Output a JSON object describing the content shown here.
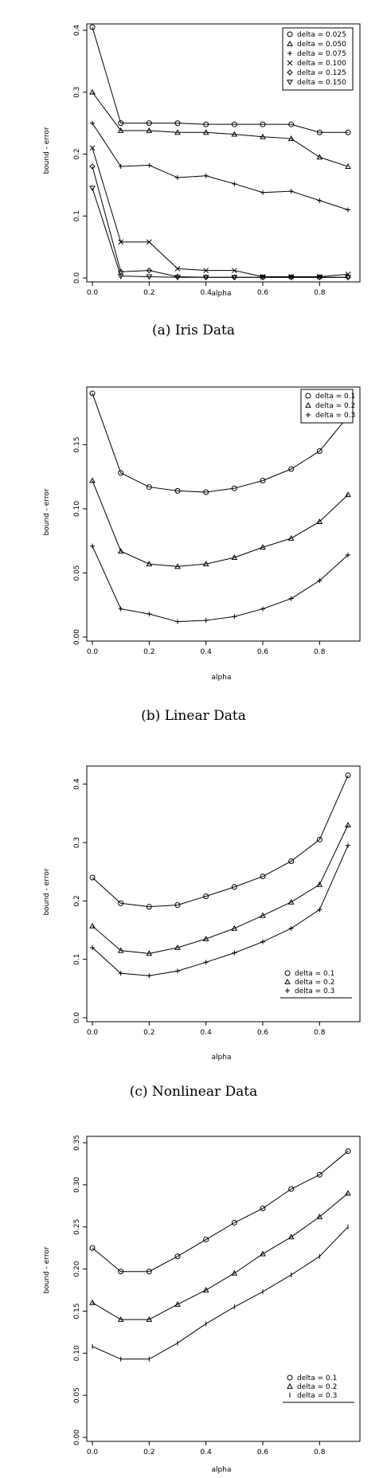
{
  "chart_data": [
    {
      "type": "line",
      "caption": "(a) Iris Data",
      "xlabel": "alpha",
      "ylabel": "bound - error",
      "xlim": [
        0,
        0.9
      ],
      "ylim": [
        0,
        0.4
      ],
      "xticks": [
        "0.0",
        "0.2",
        "0.4",
        "0.6",
        "0.8"
      ],
      "yticks": [
        "0.0",
        "0.1",
        "0.2",
        "0.3",
        "0.4"
      ],
      "legend_position": "top-right",
      "x": [
        0,
        0.1,
        0.2,
        0.3,
        0.4,
        0.5,
        0.6,
        0.7,
        0.8,
        0.9
      ],
      "series": [
        {
          "name": "delta = 0.025",
          "marker": "circle",
          "values": [
            0.405,
            0.25,
            0.25,
            0.25,
            0.248,
            0.248,
            0.248,
            0.248,
            0.235,
            0.235
          ]
        },
        {
          "name": "delta = 0.050",
          "marker": "triangle-up",
          "values": [
            0.3,
            0.238,
            0.238,
            0.235,
            0.235,
            0.232,
            0.228,
            0.225,
            0.195,
            0.18
          ]
        },
        {
          "name": "delta = 0.075",
          "marker": "plus",
          "values": [
            0.25,
            0.18,
            0.182,
            0.162,
            0.165,
            0.152,
            0.138,
            0.14,
            0.125,
            0.11
          ]
        },
        {
          "name": "delta = 0.100",
          "marker": "cross",
          "values": [
            0.21,
            0.058,
            0.058,
            0.015,
            0.012,
            0.012,
            0.002,
            0.002,
            0.002,
            0.006
          ]
        },
        {
          "name": "delta = 0.125",
          "marker": "diamond",
          "values": [
            0.18,
            0.01,
            0.012,
            0.002,
            0.001,
            0.001,
            0.001,
            0.001,
            0.001,
            0.001
          ]
        },
        {
          "name": "delta = 0.150",
          "marker": "triangle-down",
          "values": [
            0.145,
            0.003,
            0.002,
            0.001,
            0.001,
            0.001,
            0.001,
            0.001,
            0.001,
            0.001
          ]
        }
      ]
    },
    {
      "type": "line",
      "caption": "(b) Linear Data",
      "xlabel": "alpha",
      "ylabel": "bound - error",
      "xlim": [
        0,
        0.9
      ],
      "ylim": [
        0,
        0.19
      ],
      "xticks": [
        "0.0",
        "0.2",
        "0.4",
        "0.6",
        "0.8"
      ],
      "yticks": [
        "0.00",
        "0.05",
        "0.10",
        "0.15"
      ],
      "legend_position": "top-right",
      "x": [
        0,
        0.1,
        0.2,
        0.3,
        0.4,
        0.5,
        0.6,
        0.7,
        0.8,
        0.9
      ],
      "series": [
        {
          "name": "delta = 0.1",
          "marker": "circle",
          "values": [
            0.19,
            0.128,
            0.117,
            0.114,
            0.113,
            0.116,
            0.122,
            0.131,
            0.145,
            0.172
          ]
        },
        {
          "name": "delta = 0.2",
          "marker": "triangle-up",
          "values": [
            0.122,
            0.067,
            0.057,
            0.055,
            0.057,
            0.062,
            0.07,
            0.077,
            0.09,
            0.111
          ]
        },
        {
          "name": "delta = 0.3",
          "marker": "plus",
          "values": [
            0.071,
            0.022,
            0.018,
            0.012,
            0.013,
            0.016,
            0.022,
            0.03,
            0.044,
            0.064
          ]
        }
      ]
    },
    {
      "type": "line",
      "caption": "(c) Nonlinear Data",
      "xlabel": "alpha",
      "ylabel": "bound - error",
      "xlim": [
        0,
        0.9
      ],
      "ylim": [
        0,
        0.42
      ],
      "xticks": [
        "0.0",
        "0.2",
        "0.4",
        "0.6",
        "0.8"
      ],
      "yticks": [
        "0.0",
        "0.1",
        "0.2",
        "0.3",
        "0.4"
      ],
      "legend_position": "bottom-right",
      "x": [
        0,
        0.1,
        0.2,
        0.3,
        0.4,
        0.5,
        0.6,
        0.7,
        0.8,
        0.9
      ],
      "series": [
        {
          "name": "delta = 0.1",
          "marker": "circle",
          "values": [
            0.24,
            0.196,
            0.19,
            0.193,
            0.208,
            0.224,
            0.242,
            0.268,
            0.305,
            0.415
          ]
        },
        {
          "name": "delta = 0.2",
          "marker": "triangle-up",
          "values": [
            0.157,
            0.115,
            0.11,
            0.12,
            0.135,
            0.153,
            0.175,
            0.198,
            0.228,
            0.33
          ]
        },
        {
          "name": "delta = 0.3",
          "marker": "plus",
          "values": [
            0.12,
            0.076,
            0.072,
            0.08,
            0.095,
            0.111,
            0.13,
            0.153,
            0.185,
            0.295
          ]
        }
      ]
    },
    {
      "type": "line",
      "caption": "",
      "xlabel": "alpha",
      "ylabel": "bound - error",
      "xlim": [
        0,
        0.9
      ],
      "ylim": [
        0,
        0.35
      ],
      "xticks": [
        "0.0",
        "0.2",
        "0.4",
        "0.6",
        "0.8"
      ],
      "yticks": [
        "0.00",
        "0.05",
        "0.10",
        "0.15",
        "0.20",
        "0.25",
        "0.30",
        "0.35"
      ],
      "legend_position": "bottom-right",
      "x": [
        0,
        0.1,
        0.2,
        0.3,
        0.4,
        0.5,
        0.6,
        0.7,
        0.8,
        0.9
      ],
      "series": [
        {
          "name": "delta = 0.1",
          "marker": "circle",
          "values": [
            0.225,
            0.197,
            0.197,
            0.215,
            0.235,
            0.255,
            0.272,
            0.295,
            0.312,
            0.34
          ]
        },
        {
          "name": "delta = 0.2",
          "marker": "triangle-up",
          "values": [
            0.16,
            0.14,
            0.14,
            0.158,
            0.175,
            0.195,
            0.218,
            0.238,
            0.262,
            0.29
          ]
        },
        {
          "name": "delta = 0.3",
          "marker": "bar",
          "values": [
            0.108,
            0.093,
            0.093,
            0.112,
            0.135,
            0.155,
            0.173,
            0.193,
            0.215,
            0.25
          ]
        }
      ]
    }
  ]
}
